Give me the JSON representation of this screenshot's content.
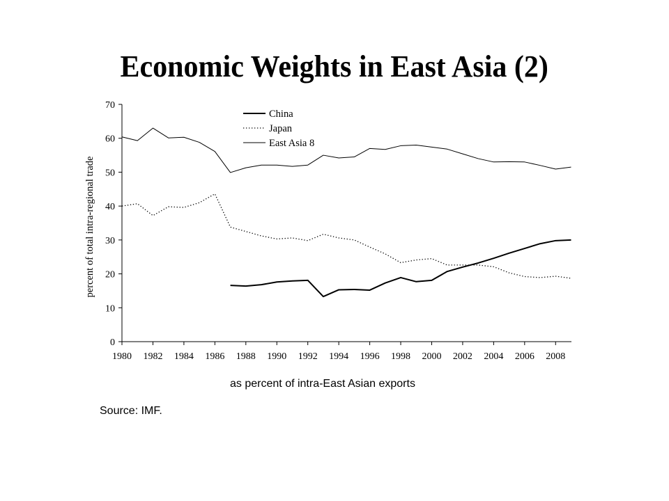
{
  "chart_data": {
    "type": "line",
    "title": "Economic Weights in East Asia (2)",
    "caption": "as percent of intra-East Asian exports",
    "source": "Source: IMF.",
    "xlabel": "",
    "ylabel": "percent of total intra-regional trade",
    "xlim": [
      1980,
      2009
    ],
    "ylim": [
      0,
      70
    ],
    "grid": false,
    "legend_position": "top",
    "x_tick_labels": [
      "1980",
      "1982",
      "1984",
      "1986",
      "1988",
      "1990",
      "1992",
      "1994",
      "1996",
      "1998",
      "2000",
      "2002",
      "2004",
      "2006",
      "2008"
    ],
    "y_tick_labels": [
      "0",
      "10",
      "20",
      "30",
      "40",
      "50",
      "60",
      "70"
    ],
    "x": [
      1980,
      1981,
      1982,
      1983,
      1984,
      1985,
      1986,
      1987,
      1988,
      1989,
      1990,
      1991,
      1992,
      1993,
      1994,
      1995,
      1996,
      1997,
      1998,
      1999,
      2000,
      2001,
      2002,
      2003,
      2004,
      2005,
      2006,
      2007,
      2008,
      2009
    ],
    "series": [
      {
        "name": "China",
        "color": "#000000",
        "line_style": "solid-thick",
        "values": [
          null,
          null,
          null,
          null,
          null,
          null,
          null,
          16.6,
          16.4,
          16.8,
          17.6,
          17.9,
          18.1,
          13.3,
          15.3,
          15.4,
          15.2,
          17.3,
          18.9,
          17.7,
          18.1,
          20.7,
          22.0,
          23.2,
          24.6,
          26.1,
          27.5,
          28.9,
          29.8,
          30.0
        ]
      },
      {
        "name": "Japan",
        "color": "#000000",
        "line_style": "dotted",
        "values": [
          40.0,
          40.7,
          37.2,
          39.8,
          39.6,
          41.0,
          43.6,
          33.8,
          32.5,
          31.2,
          30.3,
          30.6,
          29.8,
          31.7,
          30.6,
          30.0,
          27.9,
          25.9,
          23.3,
          24.1,
          24.5,
          22.6,
          22.6,
          22.6,
          22.1,
          20.3,
          19.2,
          18.9,
          19.3,
          18.7
        ]
      },
      {
        "name": "East Asia 8",
        "color": "#000000",
        "line_style": "solid-thin",
        "values": [
          60.4,
          59.3,
          63.0,
          60.1,
          60.3,
          58.8,
          56.1,
          49.9,
          51.3,
          52.1,
          52.1,
          51.7,
          52.1,
          55.0,
          54.2,
          54.5,
          57.0,
          56.7,
          57.8,
          58.0,
          57.4,
          56.8,
          55.4,
          54.0,
          53.0,
          53.1,
          53.0,
          52.0,
          50.9,
          51.5
        ]
      }
    ]
  }
}
